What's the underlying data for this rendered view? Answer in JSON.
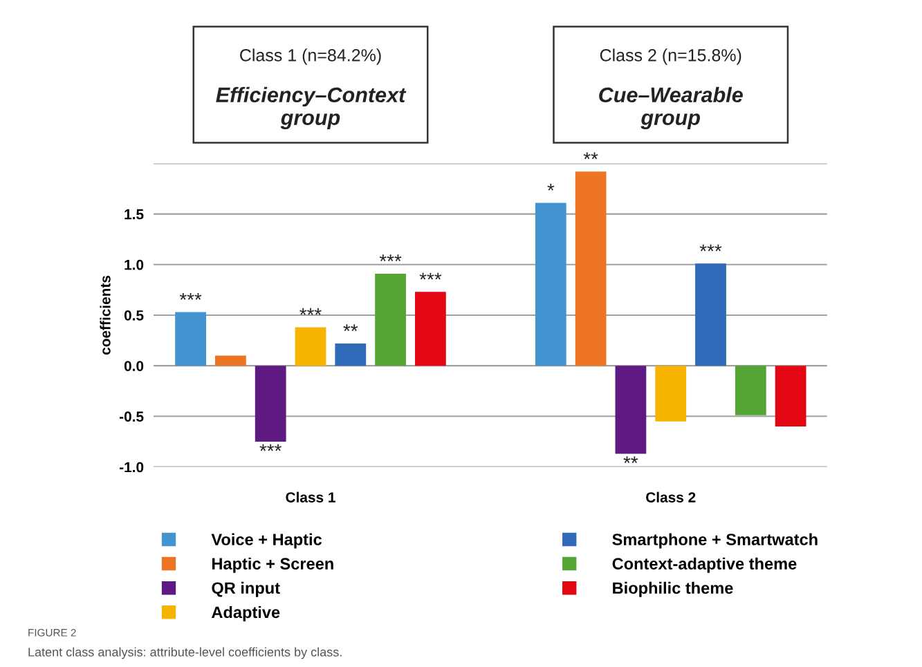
{
  "chart_data": {
    "type": "bar",
    "ylabel": "coefficients",
    "categories": [
      "Class 1",
      "Class 2"
    ],
    "series": [
      {
        "name": "Voice + Haptic",
        "color": "#4394d0",
        "values": [
          0.53,
          1.61
        ],
        "value_labels": [
          "***",
          "*"
        ]
      },
      {
        "name": "Haptic + Screen",
        "color": "#ec7423",
        "values": [
          0.1,
          1.92
        ],
        "value_labels": [
          null,
          "**"
        ]
      },
      {
        "name": "QR input",
        "color": "#5e1a82",
        "values": [
          -0.75,
          -0.87
        ],
        "value_labels": [
          "***",
          "**"
        ]
      },
      {
        "name": "Adaptive",
        "color": "#f6b400",
        "values": [
          0.38,
          -0.55
        ],
        "value_labels": [
          "***",
          null
        ]
      },
      {
        "name": "Smartphone + Smartwatch",
        "color": "#2f6bb8",
        "values": [
          0.22,
          1.01
        ],
        "value_labels": [
          "**",
          "***"
        ]
      },
      {
        "name": "Context-adaptive theme",
        "color": "#55a536",
        "values": [
          0.91,
          -0.49
        ],
        "value_labels": [
          "***",
          null
        ]
      },
      {
        "name": "Biophilic theme",
        "color": "#e30613",
        "values": [
          0.73,
          -0.6
        ],
        "value_labels": [
          "***",
          null
        ]
      }
    ],
    "ylim": [
      -1.0,
      2.0
    ],
    "yticks": [
      {
        "value": -1.0,
        "label": "-1.0"
      },
      {
        "value": -0.5,
        "label": "-0.5"
      },
      {
        "value": 0.0,
        "label": "0.0"
      },
      {
        "value": 0.5,
        "label": "0.5"
      },
      {
        "value": 1.0,
        "label": "1.0"
      },
      {
        "value": 1.5,
        "label": "1.5"
      },
      {
        "value": 2.0,
        "label": null
      }
    ],
    "grid": "y",
    "legend": "bottom",
    "annotations": [
      "Class 1 (n=84.2%)",
      "Efficiency–Context\ngroup",
      "Class 2 (n=15.8%)",
      "Cue–Wearable\ngroup",
      "FIGURE 2",
      "Latent class analysis: attribute-level coefficients by class."
    ]
  }
}
